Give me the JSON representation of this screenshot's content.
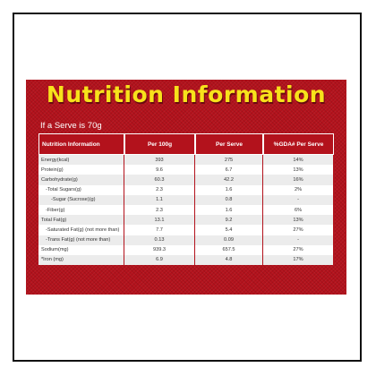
{
  "title": "Nutrition Information",
  "serve_text": "If a Serve is 70g",
  "table": {
    "headers": [
      "Nutrition Information",
      "Per 100g",
      "Per Serve",
      "%GDA# Per Serve"
    ],
    "rows": [
      {
        "label": "Energy(kcal)",
        "indent": 0,
        "per100": "393",
        "perServe": "275",
        "gda": "14%"
      },
      {
        "label": "Protein(g)",
        "indent": 0,
        "per100": "9.6",
        "perServe": "6.7",
        "gda": "13%"
      },
      {
        "label": "Carbohydrate(g)",
        "indent": 0,
        "per100": "60.3",
        "perServe": "42.2",
        "gda": "16%"
      },
      {
        "label": "-Total Sugars(g)",
        "indent": 1,
        "per100": "2.3",
        "perServe": "1.6",
        "gda": "2%"
      },
      {
        "label": "-Sugar (Sucrose)(g)",
        "indent": 2,
        "per100": "1.1",
        "perServe": "0.8",
        "gda": "-"
      },
      {
        "label": "-Fiber(g)",
        "indent": 1,
        "per100": "2.3",
        "perServe": "1.6",
        "gda": "6%"
      },
      {
        "label": "Total Fat(g)",
        "indent": 0,
        "per100": "13.1",
        "perServe": "9.2",
        "gda": "13%"
      },
      {
        "label": "-Saturated Fat(g) (not more than)",
        "indent": 1,
        "per100": "7.7",
        "perServe": "5.4",
        "gda": "27%"
      },
      {
        "label": "-Trans Fat(g) (not more than)",
        "indent": 1,
        "per100": "0.13",
        "perServe": "0.09",
        "gda": "-"
      },
      {
        "label": "Sodium(mg)",
        "indent": 0,
        "per100": "939.3",
        "perServe": "657.5",
        "gda": "27%"
      },
      {
        "label": "*Iron (mg)",
        "indent": 0,
        "per100": "6.9",
        "perServe": "4.8",
        "gda": "17%"
      }
    ]
  },
  "colors": {
    "panel": "#b3121c",
    "title": "#f7e21b",
    "row_alt": "#ececec"
  }
}
